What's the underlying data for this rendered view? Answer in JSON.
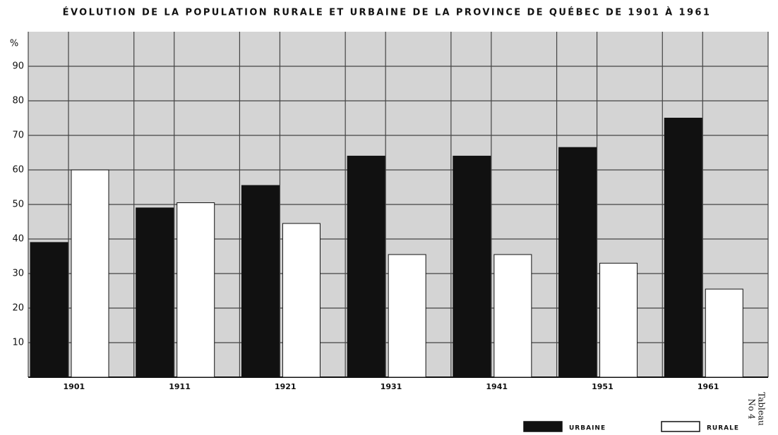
{
  "chart_data": {
    "type": "bar",
    "title": "ÉVOLUTION DE LA POPULATION RURALE ET URBAINE DE LA PROVINCE DE QUÉBEC DE 1901 À 1961",
    "y_label": "%",
    "annotation": [
      "Tableau",
      "No 4"
    ],
    "categories": [
      "1901",
      "1911",
      "1921",
      "1931",
      "1941",
      "1951",
      "1961"
    ],
    "series": [
      {
        "name": "URBAINE",
        "color": "#111111",
        "values": [
          39,
          49,
          55.5,
          64,
          64,
          66.5,
          75
        ]
      },
      {
        "name": "RURALE",
        "color": "#ffffff",
        "values": [
          60,
          50.5,
          44.5,
          35.5,
          35.5,
          33,
          25.5
        ]
      }
    ],
    "ylim": [
      0,
      100
    ],
    "yticks": [
      10,
      20,
      30,
      40,
      50,
      60,
      70,
      80,
      90
    ],
    "grid": true,
    "legend": "bottom-right"
  }
}
